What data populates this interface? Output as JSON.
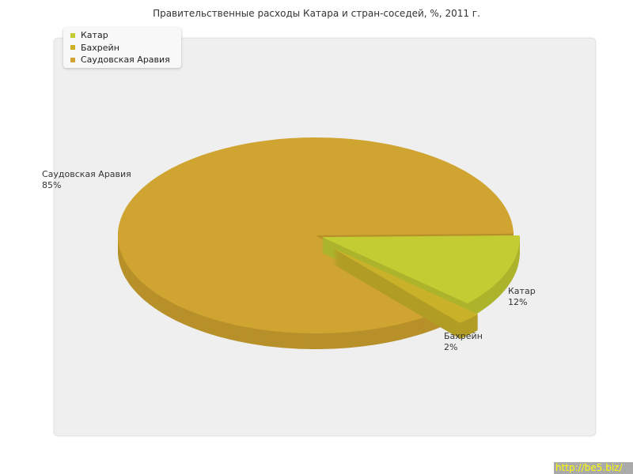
{
  "chart_data": {
    "type": "pie",
    "title": "Правительственные расходы Катара и стран-соседей, %, 2011 г.",
    "categories": [
      "Катар",
      "Бахрейн",
      "Саудовская Аравия"
    ],
    "values": [
      12,
      2,
      85
    ],
    "labels": [
      "12%",
      "2%",
      "85%"
    ],
    "colors": [
      "#c4cc33",
      "#c9b22a",
      "#d0a430"
    ],
    "exploded": [
      true,
      true,
      false
    ],
    "style": "3d",
    "legend": "top-left"
  },
  "watermark": "http://be5.biz/"
}
